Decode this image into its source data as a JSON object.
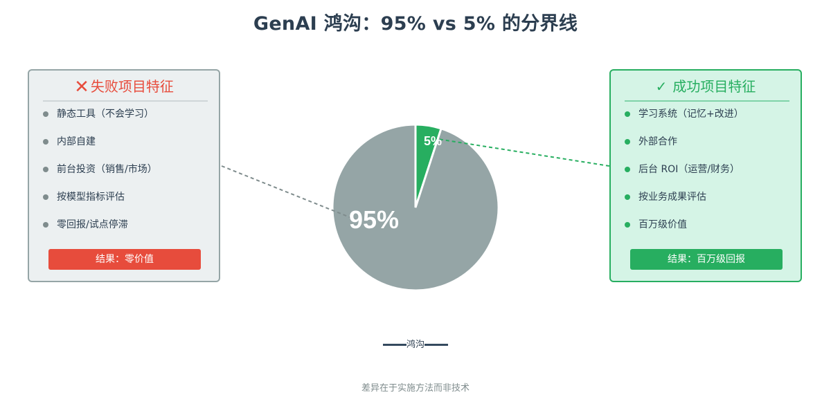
{
  "title": "GenAI 鸿沟：95% vs 5% 的分界线",
  "failure_panel": {
    "heading": "失败项目特征",
    "icon": "cross-icon",
    "color": "#e74c3c",
    "items": [
      "静态工具（不会学习）",
      "内部自建",
      "前台投资（销售/市场）",
      "按模型指标评估",
      "零回报/试点停滞"
    ],
    "result": "结果：零价值"
  },
  "success_panel": {
    "heading": "成功项目特征",
    "icon": "check-icon",
    "color": "#27ae60",
    "items": [
      "学习系统（记忆+改进）",
      "外部合作",
      "后台 ROI（运营/财务）",
      "按业务成果评估",
      "百万级价值"
    ],
    "result": "结果：百万级回报"
  },
  "chart_data": {
    "type": "pie",
    "slices": [
      {
        "label": "95%",
        "value": 95,
        "color": "#95a5a6"
      },
      {
        "label": "5%",
        "value": 5,
        "color": "#27ae60"
      }
    ]
  },
  "legend": {
    "label": "鸿沟",
    "color": "#34495e"
  },
  "footnote": "差异在于实施方法而非技术"
}
